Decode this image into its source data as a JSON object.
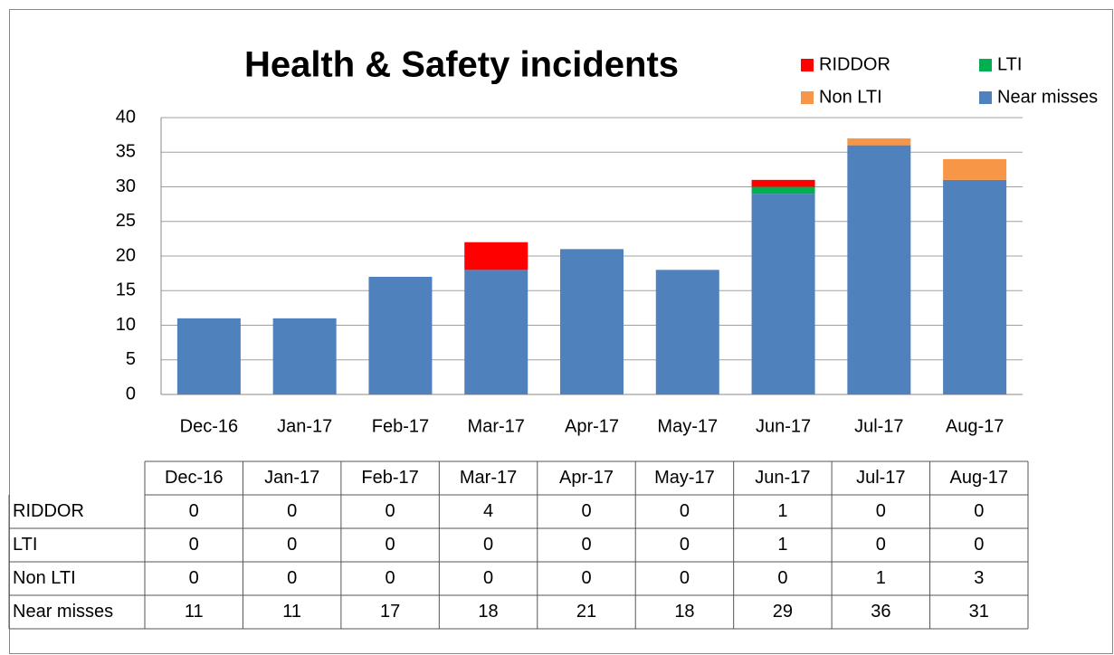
{
  "chart_data": {
    "type": "stacked_bar",
    "title": "Health & Safety  incidents",
    "categories": [
      "Dec-16",
      "Jan-17",
      "Feb-17",
      "Mar-17",
      "Apr-17",
      "May-17",
      "Jun-17",
      "Jul-17",
      "Aug-17"
    ],
    "series": [
      {
        "name": "RIDDOR",
        "color": "#ff0000",
        "values": [
          0,
          0,
          0,
          4,
          0,
          0,
          1,
          0,
          0
        ]
      },
      {
        "name": "LTI",
        "color": "#00b050",
        "values": [
          0,
          0,
          0,
          0,
          0,
          0,
          1,
          0,
          0
        ]
      },
      {
        "name": "Non LTI",
        "color": "#f79646",
        "values": [
          0,
          0,
          0,
          0,
          0,
          0,
          0,
          1,
          3
        ]
      },
      {
        "name": "Near misses",
        "color": "#4f81bd",
        "values": [
          11,
          11,
          17,
          18,
          21,
          18,
          29,
          36,
          31
        ]
      }
    ],
    "ylim": [
      0,
      40
    ],
    "yticks": [
      0,
      5,
      10,
      15,
      20,
      25,
      30,
      35,
      40
    ],
    "grid": true,
    "legend": "top-right",
    "data_table": true
  }
}
